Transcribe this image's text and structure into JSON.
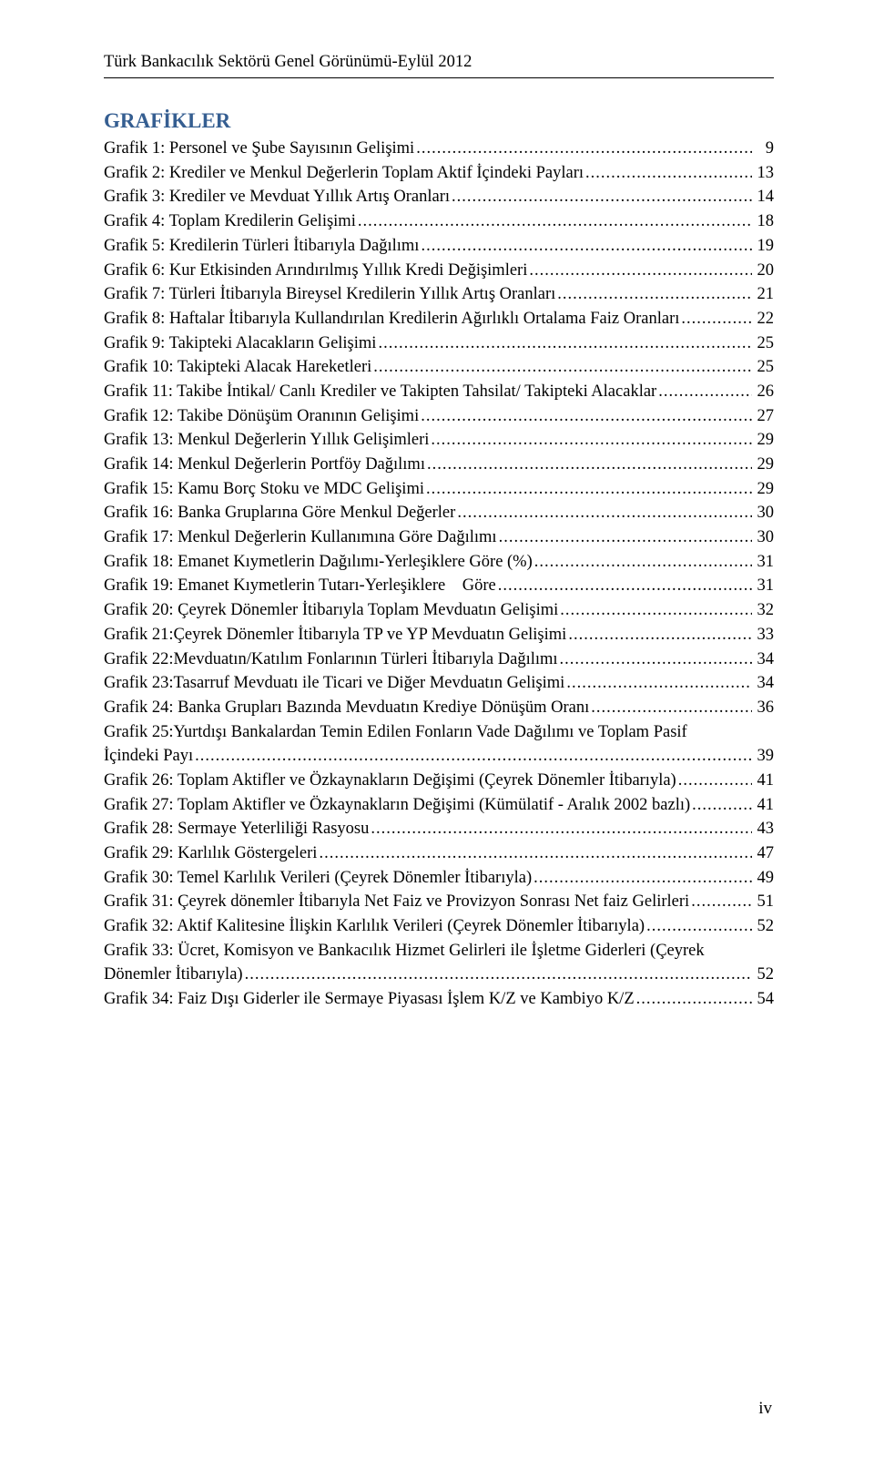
{
  "runningHead": "Türk Bankacılık Sektörü Genel Görünümü-Eylül 2012",
  "sectionTitle": "GRAFİKLER",
  "pageNumber": "iv",
  "entries": [
    {
      "label": "Grafik 1: Personel ve Şube Sayısının Gelişimi",
      "page": "9"
    },
    {
      "label": "Grafik 2: Krediler ve Menkul Değerlerin Toplam Aktif İçindeki Payları",
      "page": "13"
    },
    {
      "label": "Grafik 3: Krediler ve Mevduat Yıllık Artış Oranları",
      "page": "14"
    },
    {
      "label": "Grafik 4: Toplam Kredilerin Gelişimi",
      "page": "18"
    },
    {
      "label": "Grafik 5: Kredilerin Türleri İtibarıyla Dağılımı",
      "page": "19"
    },
    {
      "label": "Grafik 6: Kur Etkisinden Arındırılmış Yıllık Kredi Değişimleri",
      "page": "20"
    },
    {
      "label": "Grafik 7: Türleri İtibarıyla Bireysel Kredilerin Yıllık Artış Oranları",
      "page": "21"
    },
    {
      "label": "Grafik 8: Haftalar İtibarıyla Kullandırılan Kredilerin Ağırlıklı Ortalama Faiz Oranları",
      "page": "22"
    },
    {
      "label": "Grafik 9: Takipteki Alacakların Gelişimi",
      "page": "25"
    },
    {
      "label": "Grafik 10: Takipteki Alacak Hareketleri",
      "page": "25"
    },
    {
      "label": "Grafik 11: Takibe İntikal/ Canlı Krediler ve Takipten Tahsilat/ Takipteki Alacaklar",
      "page": "26"
    },
    {
      "label": "Grafik 12: Takibe Dönüşüm Oranının Gelişimi",
      "page": "27"
    },
    {
      "label": "Grafik 13: Menkul Değerlerin Yıllık Gelişimleri",
      "page": "29"
    },
    {
      "label": "Grafik 14: Menkul Değerlerin Portföy Dağılımı",
      "page": "29"
    },
    {
      "label": "Grafik 15: Kamu Borç Stoku ve MDC Gelişimi",
      "page": "29"
    },
    {
      "label": "Grafik 16: Banka Gruplarına Göre Menkul Değerler",
      "page": "30"
    },
    {
      "label": "Grafik 17: Menkul Değerlerin Kullanımına Göre Dağılımı",
      "page": "30"
    },
    {
      "label": "Grafik 18: Emanet Kıymetlerin Dağılımı-Yerleşiklere Göre  (%)",
      "page": "31"
    },
    {
      "label": "Grafik 19: Emanet Kıymetlerin Tutarı-Yerleşiklere    Göre",
      "page": "31"
    },
    {
      "label": "Grafik 20: Çeyrek Dönemler İtibarıyla Toplam Mevduatın Gelişimi",
      "page": "32"
    },
    {
      "label": "Grafik 21:Çeyrek Dönemler İtibarıyla TP ve YP Mevduatın Gelişimi",
      "page": "33"
    },
    {
      "label": "Grafik 22:Mevduatın/Katılım Fonlarının Türleri İtibarıyla Dağılımı",
      "page": "34"
    },
    {
      "label": "Grafik 23:Tasarruf Mevduatı ile Ticari ve Diğer Mevduatın Gelişimi",
      "page": "34"
    },
    {
      "label": "Grafik 24: Banka Grupları Bazında Mevduatın Krediye Dönüşüm Oranı",
      "page": "36"
    },
    {
      "line1": "Grafik 25:Yurtdışı Bankalardan Temin Edilen Fonların Vade Dağılımı ve Toplam Pasif",
      "label": "İçindeki Payı",
      "page": "39"
    },
    {
      "label": "Grafik 26: Toplam Aktifler ve Özkaynakların Değişimi (Çeyrek Dönemler İtibarıyla)",
      "page": "41"
    },
    {
      "label": "Grafik 27: Toplam Aktifler ve Özkaynakların Değişimi (Kümülatif - Aralık 2002 bazlı)",
      "page": "41"
    },
    {
      "label": "Grafik 28: Sermaye Yeterliliği Rasyosu",
      "page": "43"
    },
    {
      "label": "Grafik 29: Karlılık Göstergeleri",
      "page": "47"
    },
    {
      "label": "Grafik 30: Temel Karlılık Verileri (Çeyrek Dönemler İtibarıyla)",
      "page": "49"
    },
    {
      "label": "Grafik 31: Çeyrek dönemler İtibarıyla Net Faiz ve Provizyon Sonrası Net faiz Gelirleri",
      "page": "51"
    },
    {
      "label": "Grafik 32: Aktif Kalitesine İlişkin Karlılık Verileri (Çeyrek Dönemler İtibarıyla)",
      "page": "52"
    },
    {
      "line1": "Grafik 33: Ücret, Komisyon ve Bankacılık Hizmet Gelirleri ile İşletme Giderleri (Çeyrek",
      "label": "Dönemler İtibarıyla)",
      "page": "52"
    },
    {
      "label": "Grafik 34: Faiz Dışı Giderler ile Sermaye Piyasası İşlem K/Z ve Kambiyo K/Z",
      "page": "54"
    }
  ]
}
